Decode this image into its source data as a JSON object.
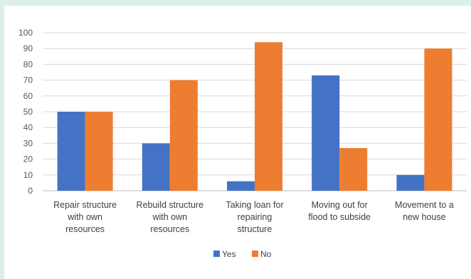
{
  "chart_data": {
    "type": "bar",
    "categories": [
      [
        "Repair structure",
        "with own",
        "resources"
      ],
      [
        "Rebuild structure",
        "with own",
        "resources"
      ],
      [
        "Taking loan for",
        "repairing",
        "structure"
      ],
      [
        "Moving out for",
        "flood to subside"
      ],
      [
        "Movement to a",
        "new house"
      ]
    ],
    "series": [
      {
        "name": "Yes",
        "color": "#4472c4",
        "values": [
          50,
          30,
          6,
          73,
          10
        ]
      },
      {
        "name": "No",
        "color": "#ed7d31",
        "values": [
          50,
          70,
          94,
          27,
          90
        ]
      }
    ],
    "ylim": [
      0,
      100
    ],
    "yticks": [
      0,
      10,
      20,
      30,
      40,
      50,
      60,
      70,
      80,
      90,
      100
    ],
    "grid": true,
    "legend_position": "bottom"
  }
}
